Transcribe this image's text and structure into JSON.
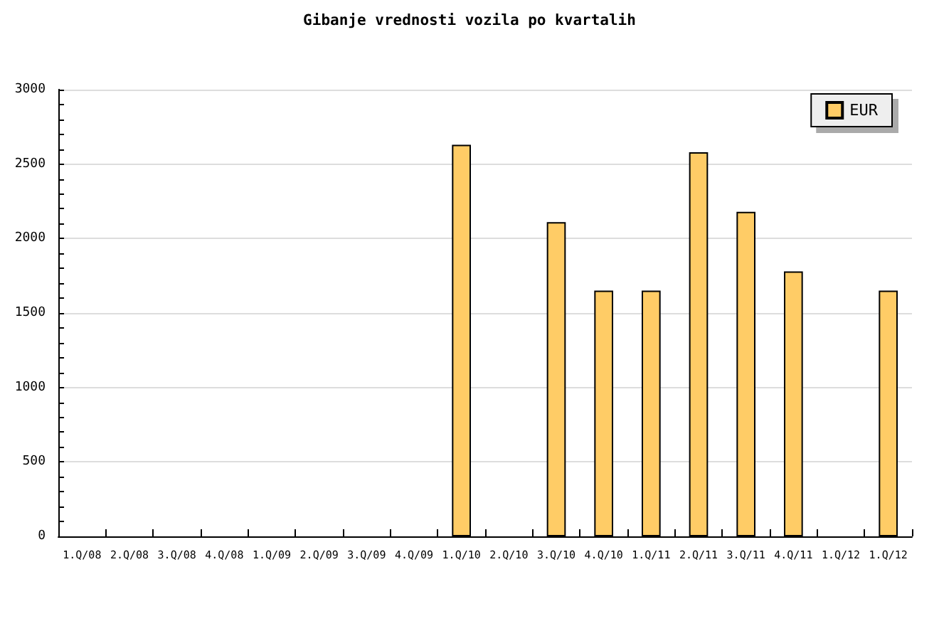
{
  "chart_data": {
    "type": "bar",
    "title": "Gibanje vrednosti vozila po kvartalih",
    "categories": [
      "1.Q/08",
      "2.Q/08",
      "3.Q/08",
      "4.Q/08",
      "1.Q/09",
      "2.Q/09",
      "3.Q/09",
      "4.Q/09",
      "1.Q/10",
      "2.Q/10",
      "3.Q/10",
      "4.Q/10",
      "1.Q/11",
      "2.Q/11",
      "3.Q/11",
      "4.Q/11",
      "1.Q/12",
      "1.Q/12"
    ],
    "series": [
      {
        "name": "EUR",
        "color": "#ffcc66",
        "values": [
          null,
          null,
          null,
          null,
          null,
          null,
          null,
          null,
          2630,
          null,
          2110,
          1650,
          1650,
          2580,
          2180,
          1780,
          null,
          1650
        ]
      }
    ],
    "ylim": [
      0,
      3000
    ],
    "yticks": [
      0,
      {
        "value": 100,
        "label": null
      },
      {
        "value": 200,
        "label": null
      },
      {
        "value": 300,
        "label": null
      },
      {
        "value": 400,
        "label": null
      },
      500,
      {
        "value": 600,
        "label": null
      },
      {
        "value": 700,
        "label": null
      },
      {
        "value": 800,
        "label": null
      },
      {
        "value": 900,
        "label": null
      },
      1000,
      {
        "value": 1100,
        "label": null
      },
      {
        "value": 1200,
        "label": null
      },
      {
        "value": 1300,
        "label": null
      },
      {
        "value": 1400,
        "label": null
      },
      1500,
      {
        "value": 1600,
        "label": null
      },
      {
        "value": 1700,
        "label": null
      },
      {
        "value": 1800,
        "label": null
      },
      {
        "value": 1900,
        "label": null
      },
      2000,
      {
        "value": 2100,
        "label": null
      },
      {
        "value": 2200,
        "label": null
      },
      {
        "value": 2300,
        "label": null
      },
      {
        "value": 2400,
        "label": null
      },
      2500,
      {
        "value": 2600,
        "label": null
      },
      {
        "value": 2700,
        "label": null
      },
      {
        "value": 2800,
        "label": null
      },
      {
        "value": 2900,
        "label": null
      },
      3000
    ],
    "grid": "y",
    "legend": "top right"
  }
}
